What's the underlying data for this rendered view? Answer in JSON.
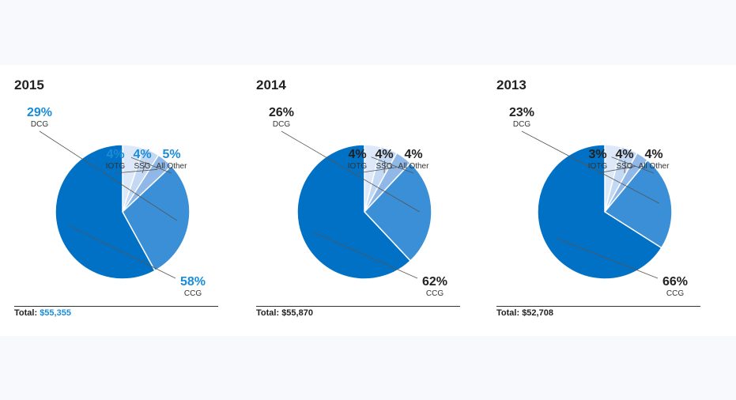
{
  "colors": {
    "CCG": "#0071c5",
    "DCG": "#3a8fd6",
    "IOTG": "#8fb8e8",
    "SSG": "#c3d8f2",
    "All Other": "#dde9f8",
    "highlight": "#1a8cd8",
    "text": "#222222",
    "leader": "#555555"
  },
  "chart_data": [
    {
      "type": "pie",
      "title": "2015",
      "categories": [
        "CCG",
        "DCG",
        "IOTG",
        "SSG",
        "All Other"
      ],
      "values": [
        58,
        29,
        4,
        4,
        5
      ],
      "labels": [
        "58%",
        "29%",
        "4%",
        "4%",
        "5%"
      ],
      "total_label": "Total:",
      "total_value": "$55,355",
      "highlight": true
    },
    {
      "type": "pie",
      "title": "2014",
      "categories": [
        "CCG",
        "DCG",
        "IOTG",
        "SSG",
        "All Other"
      ],
      "values": [
        62,
        26,
        4,
        4,
        4
      ],
      "labels": [
        "62%",
        "26%",
        "4%",
        "4%",
        "4%"
      ],
      "total_label": "Total:",
      "total_value": "$55,870",
      "highlight": false
    },
    {
      "type": "pie",
      "title": "2013",
      "categories": [
        "CCG",
        "DCG",
        "IOTG",
        "SSG",
        "All Other"
      ],
      "values": [
        66,
        23,
        3,
        4,
        4
      ],
      "labels": [
        "66%",
        "23%",
        "3%",
        "4%",
        "4%"
      ],
      "total_label": "Total:",
      "total_value": "$52,708",
      "highlight": false
    }
  ]
}
